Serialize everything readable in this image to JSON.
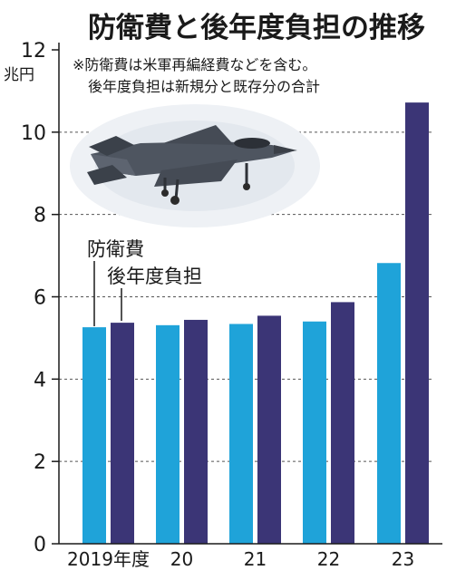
{
  "chart_data": {
    "type": "bar",
    "title": "防衛費と後年度負担の推移",
    "notes": [
      "※防衛費は米軍再編経費などを含む。",
      "後年度負担は新規分と既存分の合計"
    ],
    "unit": "兆円",
    "categories": [
      "2019年度",
      "20",
      "21",
      "22",
      "23"
    ],
    "series": [
      {
        "name": "防衛費",
        "values": [
          5.26,
          5.31,
          5.34,
          5.4,
          6.82
        ],
        "color": "#1fa3d9"
      },
      {
        "name": "後年度負担",
        "values": [
          5.37,
          5.44,
          5.54,
          5.87,
          10.72
        ],
        "color": "#3b3576"
      }
    ],
    "ylim": [
      0,
      12
    ],
    "yticks": [
      "0",
      "2",
      "4",
      "6",
      "8",
      "10",
      "12"
    ],
    "grid": true,
    "grid_style": "dashed",
    "legend_placement": "inside-left",
    "image": "fighter-jet-photo"
  }
}
